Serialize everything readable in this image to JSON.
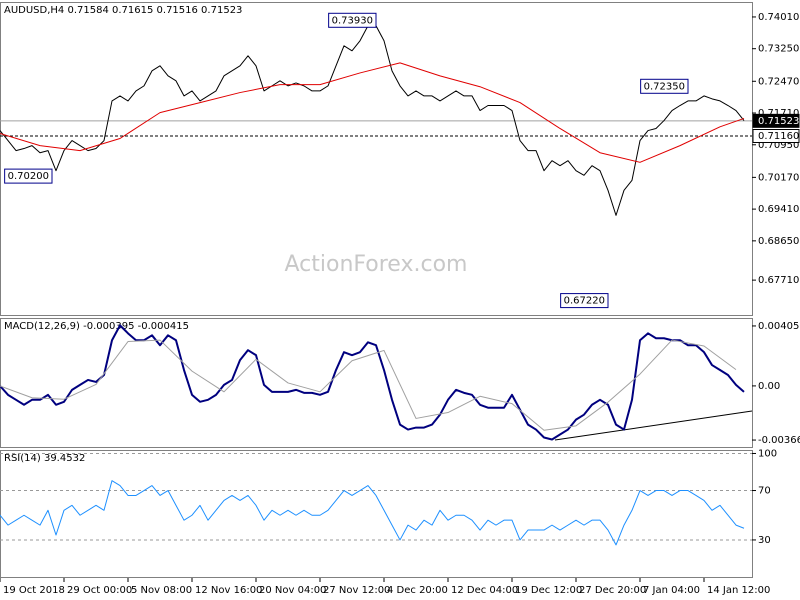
{
  "chart_data": [
    {
      "type": "line",
      "title": "AUDUSD,H4  0.71584 0.71615 0.71516 0.71523",
      "watermark": "ActionForex.com",
      "x": [
        0,
        1,
        2,
        3,
        4,
        5,
        6,
        7,
        8,
        9,
        10,
        11,
        12,
        13,
        14,
        15,
        16,
        17,
        18,
        19,
        20,
        21,
        22,
        23,
        24,
        25,
        26,
        27,
        28,
        29,
        30,
        31,
        32,
        33,
        34,
        35,
        36,
        37,
        38,
        39,
        40,
        41,
        42,
        43,
        44,
        45,
        46,
        47,
        48,
        49,
        50,
        51,
        52,
        53,
        54,
        55,
        56,
        57,
        58,
        59,
        60,
        61,
        62,
        63,
        64,
        65,
        66,
        67,
        68,
        69,
        70,
        71,
        72,
        73,
        74,
        75,
        76,
        77,
        78,
        79,
        80,
        81,
        82,
        83,
        84,
        85,
        86,
        87,
        88,
        89,
        90,
        91,
        92,
        93
      ],
      "xlim": [
        0,
        94
      ],
      "xticks": [
        {
          "value": 0,
          "label": "19 Oct 2018"
        },
        {
          "value": 8,
          "label": "29 Oct 00:00"
        },
        {
          "value": 16,
          "label": "5 Nov 08:00"
        },
        {
          "value": 24,
          "label": "12 Nov 16:00"
        },
        {
          "value": 32,
          "label": "20 Nov 04:00"
        },
        {
          "value": 40,
          "label": "27 Nov 12:00"
        },
        {
          "value": 48,
          "label": "4 Dec 20:00"
        },
        {
          "value": 56,
          "label": "12 Dec 04:00"
        },
        {
          "value": 64,
          "label": "19 Dec 12:00"
        },
        {
          "value": 72,
          "label": "27 Dec 20:00"
        },
        {
          "value": 80,
          "label": "7 Jan 04:00"
        },
        {
          "value": 88,
          "label": "14 Jan 12:00"
        }
      ],
      "ylim": [
        0.66875,
        0.74344
      ],
      "yticks": [
        {
          "value": 0.7401,
          "label": "0.74010"
        },
        {
          "value": 0.7325,
          "label": "0.73250"
        },
        {
          "value": 0.7247,
          "label": "0.72470"
        },
        {
          "value": 0.7171,
          "label": "0.71710"
        },
        {
          "value": 0.7095,
          "label": "0.70950"
        },
        {
          "value": 0.7017,
          "label": "0.70170"
        },
        {
          "value": 0.6941,
          "label": "0.69410"
        },
        {
          "value": 0.6865,
          "label": "0.68650"
        },
        {
          "value": 0.6771,
          "label": "0.67710"
        }
      ],
      "series": [
        {
          "color": "#000000",
          "values": [
            0.7129,
            0.7105,
            0.7081,
            0.7086,
            0.7093,
            0.7076,
            0.7081,
            0.7033,
            0.7081,
            0.7105,
            0.7093,
            0.7081,
            0.7086,
            0.7105,
            0.72,
            0.7212,
            0.72,
            0.7224,
            0.7236,
            0.7272,
            0.7284,
            0.726,
            0.7248,
            0.7212,
            0.7224,
            0.72,
            0.7212,
            0.7224,
            0.726,
            0.7272,
            0.7284,
            0.7308,
            0.7284,
            0.7224,
            0.7236,
            0.7248,
            0.7236,
            0.7243,
            0.7236,
            0.7224,
            0.7224,
            0.7236,
            0.7284,
            0.7332,
            0.732,
            0.7344,
            0.738,
            0.738,
            0.7344,
            0.7272,
            0.7236,
            0.7212,
            0.7224,
            0.7212,
            0.7212,
            0.72,
            0.7212,
            0.7224,
            0.7212,
            0.7212,
            0.7177,
            0.7189,
            0.7189,
            0.7189,
            0.7177,
            0.7105,
            0.7081,
            0.7081,
            0.7033,
            0.7057,
            0.7045,
            0.7057,
            0.7033,
            0.7022,
            0.7045,
            0.7033,
            0.6986,
            0.6926,
            0.6986,
            0.701,
            0.7105,
            0.7129,
            0.7134,
            0.7153,
            0.7177,
            0.7189,
            0.72,
            0.72,
            0.7212,
            0.7205,
            0.72,
            0.7189,
            0.7177,
            0.7153
          ]
        },
        {
          "color": "#e00000",
          "x": [
            0,
            5,
            10,
            15,
            20,
            25,
            30,
            35,
            40,
            45,
            50,
            55,
            60,
            65,
            70,
            75,
            80,
            85,
            90,
            93
          ],
          "values": [
            0.7122,
            0.7093,
            0.7081,
            0.711,
            0.7172,
            0.7196,
            0.722,
            0.7239,
            0.7239,
            0.7267,
            0.7291,
            0.726,
            0.7234,
            0.7196,
            0.7134,
            0.7076,
            0.7053,
            0.7093,
            0.7138,
            0.7158
          ]
        }
      ],
      "annotations": [
        {
          "label": "0.73930",
          "value": 0.7393,
          "x": 47
        },
        {
          "label": "0.70200",
          "value": 0.702,
          "x": 6.5
        },
        {
          "label": "0.72350",
          "value": 0.7235,
          "x": 86
        },
        {
          "label": "0.67220",
          "value": 0.6722,
          "x": 76
        }
      ],
      "price_levels": [
        {
          "label": "0.71523",
          "value": 0.71523,
          "style": "solid"
        },
        {
          "label": "0.71160",
          "value": 0.7116,
          "style": "dashed"
        }
      ]
    },
    {
      "type": "line",
      "title": "MACD(12,26,9) -0.000395 -0.000415",
      "ylim": [
        -0.004132,
        0.004525
      ],
      "yticks": [
        0.004055,
        {
          "value": 0,
          "label": "0.00"
        },
        -0.003662
      ],
      "series": [
        {
          "color": "#00007f",
          "width": 2,
          "values": [
            0,
            -0.000604,
            -0.000939,
            -0.001275,
            -0.000939,
            -0.000939,
            -0.000604,
            -0.001275,
            -0.001074,
            -0.000268,
            6.7e-05,
            0.000403,
            0.000268,
            0.000738,
            0.003087,
            0.004093,
            0.003556,
            0.003087,
            0.003087,
            0.003422,
            0.002751,
            0.003422,
            0.003087,
            0.001074,
            -0.000604,
            -0.001074,
            -0.000939,
            -0.000604,
            6.7e-05,
            0.000403,
            0.001745,
            0.002416,
            0.00208,
            6.7e-05,
            -0.000403,
            -0.000403,
            -0.000403,
            -0.000268,
            -0.00047,
            -0.00047,
            -0.000604,
            -0.000403,
            0.001074,
            0.002281,
            0.00208,
            0.002281,
            0.002952,
            0.002751,
            0.001074,
            -0.000939,
            -0.002617,
            -0.002952,
            -0.002818,
            -0.002818,
            -0.002617,
            -0.001946,
            -0.000939,
            -0.000268,
            -0.00047,
            -0.000604,
            -0.001275,
            -0.001476,
            -0.001476,
            -0.001476,
            -0.000604,
            -0.00161,
            -0.002617,
            -0.002952,
            -0.003489,
            -0.003623,
            -0.003288,
            -0.002952,
            -0.002281,
            -0.001946,
            -0.001275,
            -0.000939,
            -0.001275,
            -0.002617,
            -0.002952,
            -0.000939,
            0.003087,
            0.003556,
            0.003221,
            0.003221,
            0.003087,
            0.003087,
            0.002751,
            0.002751,
            0.002281,
            0.001409,
            0.001074,
            0.000738,
            6.7e-05,
            -0.000403
          ]
        },
        {
          "color": "#a0a0a0",
          "width": 1,
          "x": [
            0,
            4,
            8,
            12,
            16,
            20,
            24,
            28,
            32,
            36,
            40,
            44,
            48,
            52,
            56,
            60,
            64,
            68,
            72,
            76,
            80,
            84,
            88,
            92
          ],
          "values": [
            0,
            -0.0008,
            -0.0009,
            0.0001,
            0.003,
            0.0031,
            0.001,
            -0.0004,
            0.0018,
            0.0002,
            -0.0004,
            0.0017,
            0.0024,
            -0.0022,
            -0.0018,
            -0.0007,
            -0.0012,
            -0.003,
            -0.0027,
            -0.0011,
            0.0008,
            0.0031,
            0.0027,
            0.0011
          ]
        }
      ]
    },
    {
      "type": "line",
      "title": "RSI(14) 39.4532",
      "ylim": [
        0,
        102
      ],
      "yticks": [
        100,
        70,
        30
      ],
      "grid": true,
      "grid_style": "dashed",
      "series": [
        {
          "color": "#1e90ff",
          "width": 1,
          "values": [
            50,
            42,
            46,
            50,
            46,
            42,
            54,
            34,
            54,
            58,
            50,
            54,
            58,
            54,
            78,
            74,
            66,
            66,
            70,
            74,
            66,
            70,
            58,
            46,
            50,
            58,
            46,
            54,
            62,
            66,
            62,
            66,
            58,
            46,
            54,
            50,
            54,
            50,
            54,
            50,
            50,
            54,
            62,
            70,
            66,
            70,
            74,
            66,
            54,
            42,
            30,
            42,
            38,
            46,
            42,
            54,
            46,
            50,
            50,
            46,
            38,
            46,
            42,
            46,
            46,
            30,
            38,
            38,
            38,
            42,
            38,
            42,
            46,
            42,
            46,
            46,
            38,
            26,
            42,
            54,
            70,
            66,
            70,
            70,
            66,
            70,
            70,
            66,
            62,
            54,
            58,
            50,
            42,
            39.4532
          ]
        }
      ]
    }
  ]
}
